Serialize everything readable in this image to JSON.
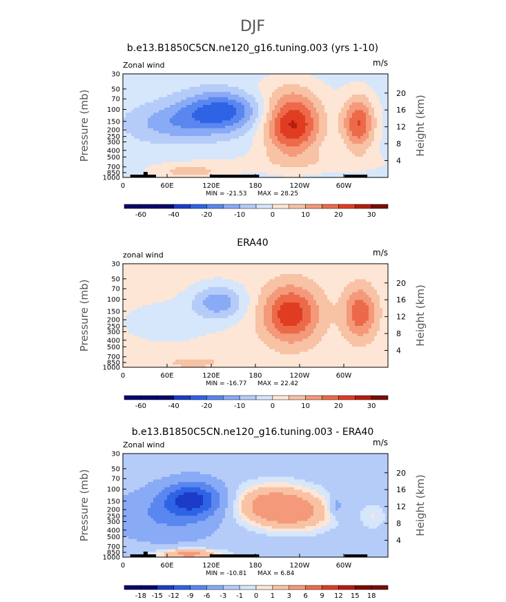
{
  "figure": {
    "title": "DJF"
  },
  "colors": {
    "colormap_blue": [
      "#08086e",
      "#1a3cc8",
      "#2f63e5",
      "#5a86f0",
      "#89aaf5",
      "#b6ccf8",
      "#d6e6fb"
    ],
    "colormap_red": [
      "#fde6d6",
      "#f8c2a5",
      "#f4997a",
      "#ec6a49",
      "#df3c22",
      "#b51d0e",
      "#7a0d05"
    ],
    "panel_bg": "#d6e6fb",
    "land": "#000000"
  },
  "chart_data": [
    {
      "type": "heatmap",
      "title": "b.e13.B1850C5CN.ne120_g16.tuning.003 (yrs 1-10)",
      "left_label": "Zonal wind",
      "units": "m/s",
      "ylabel": "Pressure (mb)",
      "ylabel_right": "Height (km)",
      "x_ticks": [
        "0",
        "60E",
        "120E",
        "180",
        "120W",
        "60W"
      ],
      "x_tick_lon": [
        0,
        60,
        120,
        180,
        240,
        300
      ],
      "xlim": [
        0,
        360
      ],
      "y_ticks": [
        "30",
        "50",
        "70",
        "100",
        "150",
        "200",
        "250",
        "300",
        "400",
        "500",
        "700",
        "850",
        "1000"
      ],
      "y_tick_p": [
        30,
        50,
        70,
        100,
        150,
        200,
        250,
        300,
        400,
        500,
        700,
        850,
        1000
      ],
      "ylim": [
        1000,
        30
      ],
      "height_ticks": [
        "20",
        "16",
        "12",
        "8",
        "4"
      ],
      "height_tick_km": [
        20,
        16,
        12,
        8,
        4
      ],
      "min_label": "MIN =  -21.53",
      "max_label": "MAX =   28.25",
      "min": -21.53,
      "max": 28.25,
      "colorbar_ticks": [
        "-60",
        "-40",
        "-20",
        "-10",
        "0",
        "10",
        "20",
        "30"
      ],
      "colorbar_levels": [
        -60,
        -50,
        -40,
        -30,
        -20,
        -15,
        -10,
        -5,
        0,
        5,
        10,
        15,
        20,
        25,
        30
      ],
      "features": [
        {
          "lon": 135,
          "p": 105,
          "value": -21,
          "dlon": 55,
          "dlogp": 0.3
        },
        {
          "lon": 65,
          "p": 160,
          "value": -10,
          "dlon": 60,
          "dlogp": 0.28
        },
        {
          "lon": 230,
          "p": 165,
          "value": 28,
          "dlon": 40,
          "dlogp": 0.45
        },
        {
          "lon": 320,
          "p": 160,
          "value": 22,
          "dlon": 22,
          "dlogp": 0.4
        },
        {
          "lon": 200,
          "p": 55,
          "value": 3,
          "dlon": 70,
          "dlogp": 0.25
        },
        {
          "lon": 90,
          "p": 820,
          "value": 9,
          "dlon": 50,
          "dlogp": 0.12
        },
        {
          "lon": 250,
          "p": 600,
          "value": 4,
          "dlon": 120,
          "dlogp": 0.15
        }
      ],
      "background": -2
    },
    {
      "type": "heatmap",
      "title": "ERA40",
      "left_label": "zonal wind",
      "units": "m/s",
      "ylabel": "Pressure (mb)",
      "ylabel_right": "Height (km)",
      "x_ticks": [
        "0",
        "60E",
        "120E",
        "180",
        "120W",
        "60W"
      ],
      "x_tick_lon": [
        0,
        60,
        120,
        180,
        240,
        300
      ],
      "xlim": [
        0,
        360
      ],
      "y_ticks": [
        "30",
        "50",
        "70",
        "100",
        "150",
        "200",
        "250",
        "300",
        "400",
        "500",
        "700",
        "850",
        "1000"
      ],
      "y_tick_p": [
        30,
        50,
        70,
        100,
        150,
        200,
        250,
        300,
        400,
        500,
        700,
        850,
        1000
      ],
      "ylim": [
        1000,
        30
      ],
      "height_ticks": [
        "20",
        "16",
        "12",
        "8",
        "4"
      ],
      "height_tick_km": [
        20,
        16,
        12,
        8,
        4
      ],
      "min_label": "MIN =  -16.77",
      "max_label": "MAX =   22.42",
      "min": -16.77,
      "max": 22.42,
      "colorbar_ticks": [
        "-60",
        "-40",
        "-20",
        "-10",
        "0",
        "10",
        "20",
        "30"
      ],
      "colorbar_levels": [
        -60,
        -50,
        -40,
        -30,
        -20,
        -15,
        -10,
        -5,
        0,
        5,
        10,
        15,
        20,
        25,
        30
      ],
      "features": [
        {
          "lon": 130,
          "p": 110,
          "value": -15,
          "dlon": 35,
          "dlogp": 0.25
        },
        {
          "lon": 60,
          "p": 220,
          "value": -4,
          "dlon": 70,
          "dlogp": 0.35
        },
        {
          "lon": 228,
          "p": 165,
          "value": 22,
          "dlon": 38,
          "dlogp": 0.42
        },
        {
          "lon": 322,
          "p": 160,
          "value": 17,
          "dlon": 22,
          "dlogp": 0.38
        },
        {
          "lon": 95,
          "p": 850,
          "value": 4,
          "dlon": 60,
          "dlogp": 0.12
        }
      ],
      "background": 2
    },
    {
      "type": "heatmap",
      "title": "b.e13.B1850C5CN.ne120_g16.tuning.003 - ERA40",
      "left_label": "Zonal wind",
      "units": "m/s",
      "ylabel": "Pressure (mb)",
      "ylabel_right": "Height (km)",
      "x_ticks": [
        "0",
        "60E",
        "120E",
        "180",
        "120W",
        "60W"
      ],
      "x_tick_lon": [
        0,
        60,
        120,
        180,
        240,
        300
      ],
      "xlim": [
        0,
        360
      ],
      "y_ticks": [
        "30",
        "50",
        "70",
        "100",
        "150",
        "200",
        "250",
        "300",
        "400",
        "500",
        "700",
        "850",
        "1000"
      ],
      "y_tick_p": [
        30,
        50,
        70,
        100,
        150,
        200,
        250,
        300,
        400,
        500,
        700,
        850,
        1000
      ],
      "ylim": [
        1000,
        30
      ],
      "height_ticks": [
        "20",
        "16",
        "12",
        "8",
        "4"
      ],
      "height_tick_km": [
        20,
        16,
        12,
        8,
        4
      ],
      "min_label": "MIN =  -10.81",
      "max_label": "MAX =    6.84",
      "min": -10.81,
      "max": 6.84,
      "colorbar_ticks": [
        "-18",
        "-15",
        "-12",
        "-9",
        "-6",
        "-3",
        "-1",
        "0",
        "1",
        "3",
        "6",
        "9",
        "12",
        "15",
        "18"
      ],
      "colorbar_levels": [
        -18,
        -15,
        -12,
        -9,
        -6,
        -3,
        -1,
        0,
        1,
        3,
        6,
        9,
        12,
        15,
        18
      ],
      "features": [
        {
          "lon": 95,
          "p": 140,
          "value": -10.5,
          "dlon": 40,
          "dlogp": 0.25
        },
        {
          "lon": 60,
          "p": 250,
          "value": -4,
          "dlon": 70,
          "dlogp": 0.35
        },
        {
          "lon": 205,
          "p": 170,
          "value": 6.5,
          "dlon": 60,
          "dlogp": 0.3
        },
        {
          "lon": 240,
          "p": 250,
          "value": 3,
          "dlon": 50,
          "dlogp": 0.25
        },
        {
          "lon": 290,
          "p": 180,
          "value": -3,
          "dlon": 10,
          "dlogp": 0.15
        },
        {
          "lon": 90,
          "p": 900,
          "value": 6,
          "dlon": 45,
          "dlogp": 0.08
        },
        {
          "lon": 340,
          "p": 250,
          "value": 2,
          "dlon": 18,
          "dlogp": 0.2
        }
      ],
      "background": -2
    }
  ]
}
